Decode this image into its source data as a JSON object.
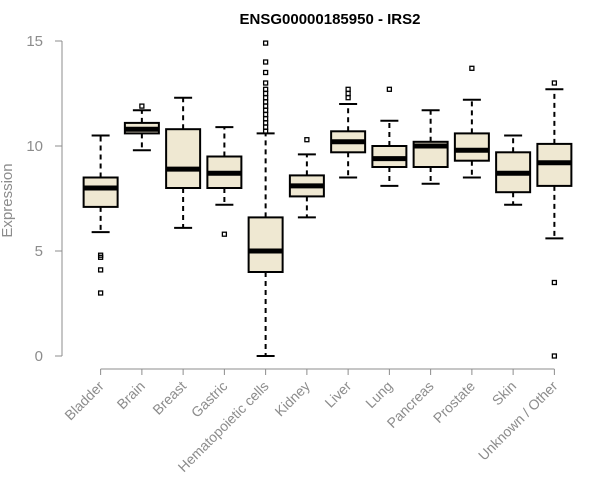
{
  "chart_data": {
    "type": "boxplot",
    "title": "ENSG00000185950 - IRS2",
    "xlabel": "",
    "ylabel": "Expression",
    "ylim": [
      0,
      15
    ],
    "yticks": [
      0,
      5,
      10,
      15
    ],
    "grid": false,
    "box_fill": "#efe8d2",
    "categories": [
      "Bladder",
      "Brain",
      "Breast",
      "Gastric",
      "Hematopoietic cells",
      "Kidney",
      "Liver",
      "Lung",
      "Pancreas",
      "Prostate",
      "Skin",
      "Unknown / Other"
    ],
    "boxes": [
      {
        "name": "Bladder",
        "whislo": 5.9,
        "q1": 7.1,
        "med": 8.0,
        "q3": 8.5,
        "whishi": 10.5,
        "fliers": [
          4.8,
          4.7,
          4.1,
          3.0
        ]
      },
      {
        "name": "Brain",
        "whislo": 9.8,
        "q1": 10.6,
        "med": 10.8,
        "q3": 11.1,
        "whishi": 11.7,
        "fliers": [
          11.9
        ]
      },
      {
        "name": "Breast",
        "whislo": 6.1,
        "q1": 8.0,
        "med": 8.9,
        "q3": 10.8,
        "whishi": 12.3,
        "fliers": []
      },
      {
        "name": "Gastric",
        "whislo": 7.2,
        "q1": 8.0,
        "med": 8.7,
        "q3": 9.5,
        "whishi": 10.9,
        "fliers": [
          5.8
        ]
      },
      {
        "name": "Hematopoietic cells",
        "whislo": 0.0,
        "q1": 4.0,
        "med": 5.0,
        "q3": 6.6,
        "whishi": 10.6,
        "fliers": [
          10.7,
          10.9,
          11.1,
          11.3,
          11.5,
          11.7,
          11.9,
          12.1,
          12.3,
          12.5,
          12.7,
          13.0,
          13.5,
          14.0,
          14.9
        ]
      },
      {
        "name": "Kidney",
        "whislo": 6.6,
        "q1": 7.6,
        "med": 8.1,
        "q3": 8.6,
        "whishi": 9.6,
        "fliers": [
          10.3
        ]
      },
      {
        "name": "Liver",
        "whislo": 8.5,
        "q1": 9.7,
        "med": 10.2,
        "q3": 10.7,
        "whishi": 12.0,
        "fliers": [
          12.3,
          12.5,
          12.7
        ]
      },
      {
        "name": "Lung",
        "whislo": 8.1,
        "q1": 9.0,
        "med": 9.4,
        "q3": 10.0,
        "whishi": 11.2,
        "fliers": [
          12.7
        ]
      },
      {
        "name": "Pancreas",
        "whislo": 8.2,
        "q1": 9.0,
        "med": 10.0,
        "q3": 10.2,
        "whishi": 11.7,
        "fliers": []
      },
      {
        "name": "Prostate",
        "whislo": 8.5,
        "q1": 9.3,
        "med": 9.8,
        "q3": 10.6,
        "whishi": 12.2,
        "fliers": [
          13.7
        ]
      },
      {
        "name": "Skin",
        "whislo": 7.2,
        "q1": 7.8,
        "med": 8.7,
        "q3": 9.7,
        "whishi": 10.5,
        "fliers": []
      },
      {
        "name": "Unknown / Other",
        "whislo": 5.6,
        "q1": 8.1,
        "med": 9.2,
        "q3": 10.1,
        "whishi": 12.7,
        "fliers": [
          13.0,
          3.5,
          0.0
        ]
      }
    ]
  }
}
